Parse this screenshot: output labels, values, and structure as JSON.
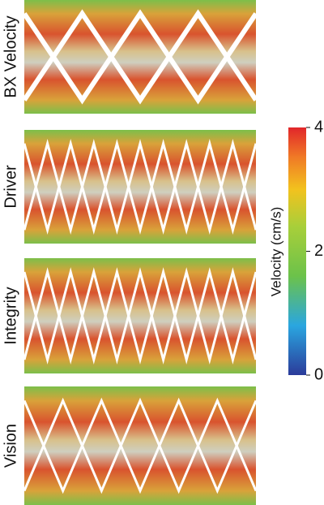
{
  "panels": [
    {
      "label": "BX Velocity"
    },
    {
      "label": "Driver"
    },
    {
      "label": "Integrity"
    },
    {
      "label": "Vision"
    }
  ],
  "colorbar": {
    "label": "Velocity (cm/s)",
    "range": [
      0,
      4
    ],
    "ticks": [
      0,
      2,
      4
    ]
  }
}
